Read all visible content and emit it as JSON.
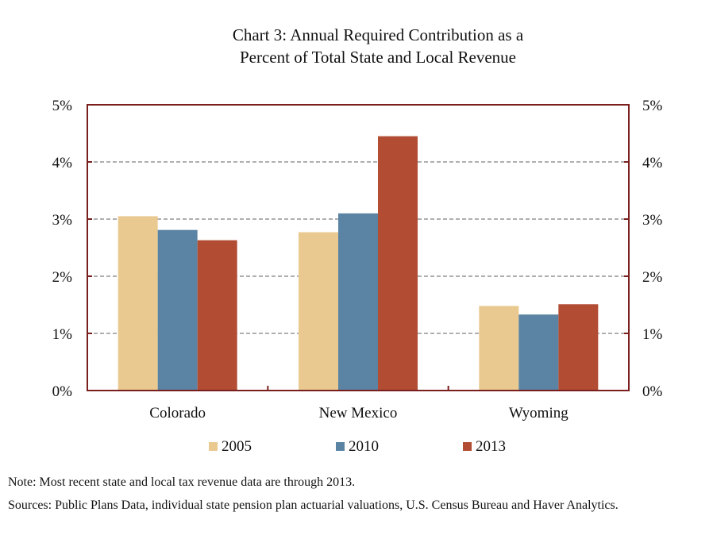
{
  "chart_data": {
    "type": "bar",
    "title_lines": [
      "Chart 3: Annual Required Contribution as a",
      "Percent of Total State and Local Revenue"
    ],
    "categories": [
      "Colorado",
      "New Mexico",
      "Wyoming"
    ],
    "series": [
      {
        "name": "2005",
        "color": "#E9C990",
        "values": [
          3.05,
          2.77,
          1.48
        ]
      },
      {
        "name": "2010",
        "color": "#5B84A4",
        "values": [
          2.81,
          3.1,
          1.33
        ]
      },
      {
        "name": "2013",
        "color": "#B24C33",
        "values": [
          2.63,
          4.45,
          1.51
        ]
      }
    ],
    "y_ticks": [
      "0%",
      "1%",
      "2%",
      "3%",
      "4%",
      "5%"
    ],
    "ylim": [
      0,
      5
    ],
    "y_axis_right": true,
    "grid": "dashed-horizontal",
    "legend_placement": "bottom",
    "frame_color": "#7A1E1E",
    "grid_color": "#7F7F7F"
  },
  "notes": {
    "note": "Note: Most recent state and local tax revenue data are through 2013.",
    "sources": "Sources: Public Plans Data, individual state pension plan actuarial valuations, U.S. Census Bureau and Haver Analytics."
  }
}
